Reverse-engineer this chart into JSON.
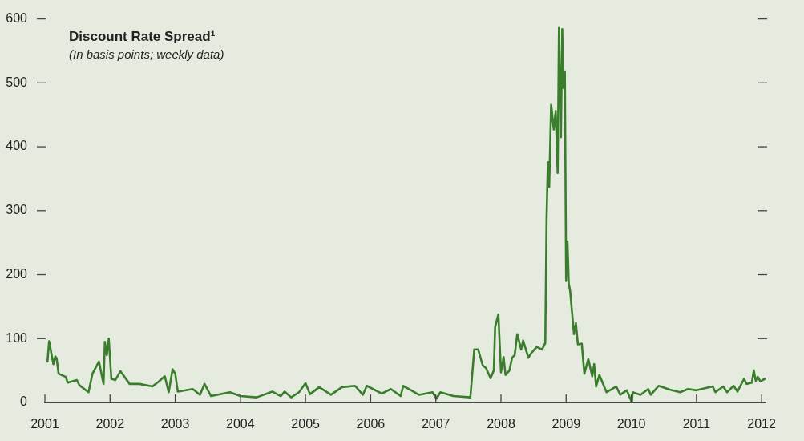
{
  "chart_data": {
    "type": "line",
    "title": "Discount Rate Spread¹",
    "subtitle": "(In basis points; weekly data)",
    "xlim": [
      2001,
      2012.06
    ],
    "xticks": [
      2001,
      2002,
      2003,
      2004,
      2005,
      2006,
      2007,
      2008,
      2009,
      2010,
      2011,
      2012
    ],
    "ylim": [
      0,
      600
    ],
    "yticks": [
      0,
      100,
      200,
      300,
      400,
      500,
      600
    ],
    "grid": false,
    "legend": false,
    "marker": "none",
    "line_style": "solid",
    "series": [
      {
        "color": "#3a7d2c",
        "x": [
          2001.04,
          2001.065,
          2001.13,
          2001.16,
          2001.18,
          2001.21,
          2001.32,
          2001.35,
          2001.49,
          2001.53,
          2001.67,
          2001.73,
          2001.83,
          2001.9,
          2001.92,
          2001.95,
          2001.98,
          2002.02,
          2002.08,
          2002.16,
          2002.3,
          2002.45,
          2002.65,
          2002.75,
          2002.84,
          2002.9,
          2002.96,
          2003.0,
          2003.04,
          2003.27,
          2003.38,
          2003.45,
          2003.55,
          2003.84,
          2004.0,
          2004.25,
          2004.49,
          2004.62,
          2004.68,
          2004.78,
          2004.9,
          2005.0,
          2005.07,
          2005.21,
          2005.39,
          2005.56,
          2005.76,
          2005.88,
          2005.94,
          2006.17,
          2006.31,
          2006.46,
          2006.5,
          2006.74,
          2006.95,
          2007.01,
          2007.07,
          2007.27,
          2007.53,
          2007.59,
          2007.65,
          2007.72,
          2007.77,
          2007.84,
          2007.89,
          2007.91,
          2007.96,
          2008.0,
          2008.04,
          2008.07,
          2008.13,
          2008.17,
          2008.21,
          2008.25,
          2008.31,
          2008.34,
          2008.42,
          2008.47,
          2008.55,
          2008.63,
          2008.68,
          2008.7,
          2008.72,
          2008.74,
          2008.77,
          2008.81,
          2008.84,
          2008.87,
          2008.89,
          2008.92,
          2008.94,
          2008.96,
          2008.98,
          2009.0,
          2009.02,
          2009.04,
          2009.06,
          2009.12,
          2009.15,
          2009.18,
          2009.24,
          2009.28,
          2009.34,
          2009.4,
          2009.43,
          2009.46,
          2009.51,
          2009.62,
          2009.77,
          2009.83,
          2009.93,
          2010.01,
          2010.02,
          2010.14,
          2010.26,
          2010.3,
          2010.42,
          2010.59,
          2010.75,
          2010.87,
          2011.0,
          2011.25,
          2011.29,
          2011.41,
          2011.47,
          2011.57,
          2011.63,
          2011.73,
          2011.77,
          2011.85,
          2011.88,
          2011.91,
          2011.94,
          2011.98,
          2012.05
        ],
        "values": [
          64,
          96,
          60,
          72,
          69,
          45,
          40,
          31,
          35,
          27,
          16,
          45,
          64,
          29,
          95,
          74,
          100,
          37,
          35,
          49,
          29,
          29,
          25,
          33,
          41,
          16,
          52,
          45,
          17,
          21,
          12,
          29,
          10,
          16,
          10,
          8,
          17,
          10,
          17,
          8,
          16,
          30,
          13,
          24,
          12,
          24,
          26,
          12,
          26,
          14,
          21,
          10,
          26,
          12,
          16,
          6,
          16,
          10,
          8,
          83,
          83,
          58,
          54,
          38,
          50,
          118,
          138,
          47,
          71,
          43,
          50,
          70,
          74,
          107,
          83,
          97,
          70,
          78,
          87,
          83,
          93,
          289,
          376,
          337,
          466,
          427,
          456,
          359,
          586,
          415,
          584,
          492,
          518,
          190,
          252,
          186,
          176,
          107,
          124,
          91,
          92,
          45,
          68,
          41,
          60,
          25,
          43,
          16,
          25,
          12,
          19,
          0,
          16,
          12,
          21,
          12,
          26,
          20,
          16,
          21,
          19,
          25,
          16,
          25,
          16,
          26,
          17,
          37,
          29,
          31,
          50,
          34,
          40,
          33,
          37
        ]
      }
    ]
  }
}
